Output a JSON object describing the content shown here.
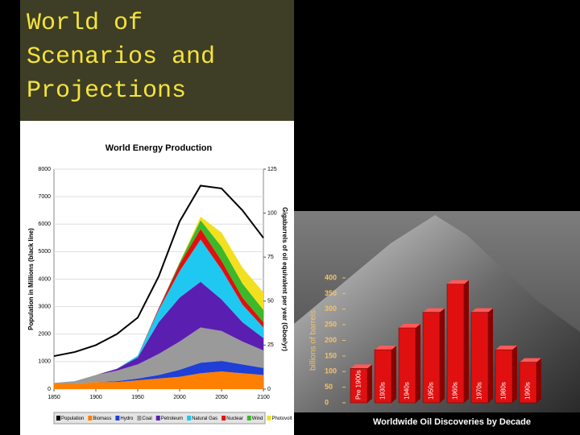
{
  "title": "World of Scenarios and Projections",
  "chart_data": [
    {
      "type": "area",
      "stacked": true,
      "title": "World Energy Production",
      "y_label": "Population in Millions (black line)",
      "y2_label": "Gigabarrels of oil equivalent per year (Gboe/yr)",
      "x": [
        1850,
        1875,
        1900,
        1925,
        1950,
        1975,
        2000,
        2025,
        2050,
        2075,
        2100
      ],
      "xlim": [
        1850,
        2100
      ],
      "xticks": [
        1850,
        1900,
        1950,
        2000,
        2050,
        2100
      ],
      "ylim": [
        0,
        8000
      ],
      "yticks": [
        0,
        1000,
        2000,
        3000,
        4000,
        5000,
        6000,
        7000,
        8000
      ],
      "y2lim": [
        0,
        125
      ],
      "y2ticks": [
        0,
        25,
        50,
        75,
        100,
        125
      ],
      "grid": true,
      "series": [
        {
          "name": "Population",
          "color": "#000000",
          "values": [
            1200,
            1350,
            1600,
            2000,
            2600,
            4100,
            6100,
            7400,
            7300,
            6500,
            5500
          ]
        },
        {
          "name": "Biomass",
          "color": "#ff7f00",
          "axis": "y2",
          "values": [
            3,
            3,
            4,
            4,
            5,
            6,
            7,
            9,
            10,
            9,
            8
          ]
        },
        {
          "name": "Hydro",
          "color": "#1f3fd6",
          "axis": "y2",
          "values": [
            0,
            0,
            0,
            0.5,
            1,
            2,
            4,
            6,
            6,
            5,
            4
          ]
        },
        {
          "name": "Coal",
          "color": "#9a9a9a",
          "axis": "y2",
          "values": [
            0.5,
            1.5,
            4,
            6,
            8,
            12,
            16,
            20,
            17,
            13,
            10
          ]
        },
        {
          "name": "Petroleum",
          "color": "#5a1fb0",
          "axis": "y2",
          "values": [
            0,
            0,
            0,
            1,
            4,
            18,
            25,
            26,
            18,
            11,
            7
          ]
        },
        {
          "name": "Natural Gas",
          "color": "#1fc8f0",
          "axis": "y2",
          "values": [
            0,
            0,
            0,
            0,
            1,
            7,
            15,
            24,
            17,
            10,
            6
          ]
        },
        {
          "name": "Nuclear",
          "color": "#e01010",
          "axis": "y2",
          "values": [
            0,
            0,
            0,
            0,
            0,
            1,
            4,
            6,
            5,
            4,
            3
          ]
        },
        {
          "name": "Wind",
          "color": "#3cb82a",
          "axis": "y2",
          "values": [
            0,
            0,
            0,
            0,
            0,
            0,
            1,
            5,
            8,
            8,
            7
          ]
        },
        {
          "name": "Photovolt",
          "color": "#f2e020",
          "axis": "y2",
          "values": [
            0,
            0,
            0,
            0,
            0,
            0,
            0,
            2,
            8,
            9,
            10
          ]
        }
      ]
    },
    {
      "type": "bar",
      "title": "Worldwide Oil Discoveries by Decade",
      "y_label": "billions of barrels",
      "categories": [
        "Pre 1900s",
        "1930s",
        "1940s",
        "1950s",
        "1960s",
        "1970s",
        "1980s",
        "1990s"
      ],
      "values": [
        110,
        170,
        240,
        290,
        380,
        290,
        170,
        130
      ],
      "color": "#e01010",
      "ylim": [
        0,
        400
      ],
      "yticks": [
        0,
        50,
        100,
        150,
        200,
        250,
        300,
        350,
        400
      ]
    }
  ]
}
